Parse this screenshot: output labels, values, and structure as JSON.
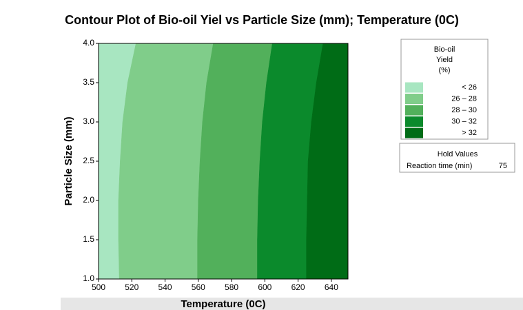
{
  "chart_data": {
    "type": "contour",
    "title": "Contour Plot of Bio-oil Yiel vs Particle Size (mm); Temperature (0C)",
    "x_label": "Temperature (0C)",
    "y_label": "Particle Size (mm)",
    "xlim": [
      500,
      650
    ],
    "xticks": [
      500,
      520,
      540,
      560,
      580,
      600,
      620,
      640
    ],
    "ylim": [
      1,
      4
    ],
    "yticks": [
      {
        "value": 1,
        "label": "1.0"
      },
      1.5,
      {
        "value": 2,
        "label": "2.0"
      },
      2.5,
      {
        "value": 3,
        "label": "3.0"
      },
      3.5,
      {
        "value": 4,
        "label": "4.0"
      }
    ],
    "contour_y": [
      1,
      1.5,
      2,
      2.5,
      3,
      3.5,
      4
    ],
    "contours": [
      {
        "x": [
          512.5,
          512,
          512,
          513,
          514.5,
          517.5,
          522.5
        ]
      },
      {
        "x": [
          559.5,
          559.5,
          560,
          561,
          562.5,
          565,
          569
        ]
      },
      {
        "x": [
          595.5,
          595.5,
          596,
          597,
          598.5,
          601,
          604.5
        ]
      },
      {
        "x": [
          625,
          625,
          625.5,
          626,
          628,
          631,
          635
        ]
      }
    ],
    "legend": {
      "title": [
        "Bio-oil",
        "Yield",
        "(%)"
      ],
      "labels": [
        "< 26",
        "26 – 28",
        "28 – 30",
        "30 – 32",
        "> 32"
      ],
      "colors": [
        "#a8e6c1",
        "#80cd8a",
        "#52b05b",
        "#0b8a2c",
        "#006c16"
      ]
    },
    "hold": {
      "title": "Hold Values",
      "name": "Reaction time (min)",
      "value": 75
    }
  }
}
